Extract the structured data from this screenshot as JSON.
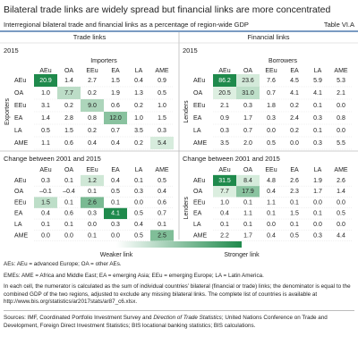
{
  "header": {
    "title": "Bilateral trade links are widely spread but financial links are more concentrated",
    "subtitle": "Interregional bilateral trade and financial links as a percentage of region-wide GDP",
    "table_id": "Table VI.A"
  },
  "panels": [
    {
      "heading": "Trade links",
      "sections": [
        {
          "label": "2015",
          "axis_label": "Importers",
          "side_label": "Exporters",
          "columns": [
            "AEu",
            "OA",
            "EEu",
            "EA",
            "LA",
            "AME"
          ],
          "rows": [
            {
              "label": "AEu",
              "cells": [
                "20.9",
                "1.4",
                "2.7",
                "1.5",
                "0.4",
                "0.9"
              ]
            },
            {
              "label": "OA",
              "cells": [
                "1.0",
                "7.7",
                "0.2",
                "1.9",
                "1.3",
                "0.5"
              ]
            },
            {
              "label": "EEu",
              "cells": [
                "3.1",
                "0.2",
                "9.0",
                "0.6",
                "0.2",
                "1.0"
              ]
            },
            {
              "label": "EA",
              "cells": [
                "1.4",
                "2.8",
                "0.8",
                "12.0",
                "1.0",
                "1.5"
              ]
            },
            {
              "label": "LA",
              "cells": [
                "0.5",
                "1.5",
                "0.2",
                "0.7",
                "3.5",
                "0.3"
              ]
            },
            {
              "label": "AME",
              "cells": [
                "1.1",
                "0.6",
                "0.4",
                "0.4",
                "0.2",
                "5.4"
              ]
            }
          ]
        },
        {
          "label": "Change between 2001 and 2015",
          "columns": [
            "AEu",
            "OA",
            "EEu",
            "EA",
            "LA",
            "AME"
          ],
          "rows": [
            {
              "label": "AEu",
              "cells": [
                "0.3",
                "0.1",
                "1.2",
                "0.4",
                "0.1",
                "0.5"
              ]
            },
            {
              "label": "OA",
              "cells": [
                "–0.1",
                "–0.4",
                "0.1",
                "0.5",
                "0.3",
                "0.4"
              ]
            },
            {
              "label": "EEu",
              "cells": [
                "1.5",
                "0.1",
                "2.6",
                "0.1",
                "0.0",
                "0.6"
              ]
            },
            {
              "label": "EA",
              "cells": [
                "0.4",
                "0.6",
                "0.3",
                "4.1",
                "0.5",
                "0.7"
              ]
            },
            {
              "label": "LA",
              "cells": [
                "0.1",
                "0.1",
                "0.0",
                "0.3",
                "0.4",
                "0.1"
              ]
            },
            {
              "label": "AME",
              "cells": [
                "0.0",
                "0.0",
                "0.1",
                "0.0",
                "0.5",
                "2.5"
              ]
            }
          ]
        }
      ]
    },
    {
      "heading": "Financial links",
      "sections": [
        {
          "label": "2015",
          "axis_label": "Borrowers",
          "side_label": "Lenders",
          "columns": [
            "AEu",
            "OA",
            "EEu",
            "EA",
            "LA",
            "AME"
          ],
          "rows": [
            {
              "label": "AEu",
              "cells": [
                "86.2",
                "23.6",
                "7.6",
                "4.5",
                "5.9",
                "5.3"
              ]
            },
            {
              "label": "OA",
              "cells": [
                "20.5",
                "31.0",
                "0.7",
                "4.1",
                "4.1",
                "2.1"
              ]
            },
            {
              "label": "EEu",
              "cells": [
                "2.1",
                "0.3",
                "1.8",
                "0.2",
                "0.1",
                "0.0"
              ]
            },
            {
              "label": "EA",
              "cells": [
                "0.9",
                "1.7",
                "0.3",
                "2.4",
                "0.3",
                "0.8"
              ]
            },
            {
              "label": "LA",
              "cells": [
                "0.3",
                "0.7",
                "0.0",
                "0.2",
                "0.1",
                "0.0"
              ]
            },
            {
              "label": "AME",
              "cells": [
                "3.5",
                "2.0",
                "0.5",
                "0.0",
                "0.3",
                "5.5"
              ]
            }
          ]
        },
        {
          "label": "Change between 2001 and 2015",
          "side_label": "Lenders",
          "columns": [
            "AEu",
            "OA",
            "EEu",
            "EA",
            "LA",
            "AME"
          ],
          "rows": [
            {
              "label": "AEu",
              "cells": [
                "31.5",
                "8.4",
                "4.8",
                "2.6",
                "1.9",
                "2.6"
              ]
            },
            {
              "label": "OA",
              "cells": [
                "7.7",
                "17.9",
                "0.4",
                "2.3",
                "1.7",
                "1.4"
              ]
            },
            {
              "label": "EEu",
              "cells": [
                "1.0",
                "0.1",
                "1.1",
                "0.1",
                "0.0",
                "0.0"
              ]
            },
            {
              "label": "EA",
              "cells": [
                "0.4",
                "1.1",
                "0.1",
                "1.5",
                "0.1",
                "0.5"
              ]
            },
            {
              "label": "LA",
              "cells": [
                "0.1",
                "0.1",
                "0.0",
                "0.1",
                "0.0",
                "0.0"
              ]
            },
            {
              "label": "AME",
              "cells": [
                "2.2",
                "1.7",
                "0.4",
                "0.5",
                "0.3",
                "4.4"
              ]
            }
          ]
        }
      ]
    }
  ],
  "legend": {
    "low": "Weaker link",
    "high": "Stronger link"
  },
  "notes": [
    "AEs: AEu = advanced Europe; OA = other AEs.",
    "EMEs: AME = Africa and Middle East; EA = emerging Asia; EEu = emerging Europe; LA = Latin America.",
    "In each cell, the numerator is calculated as the sum of individual countries’ bilateral (financial or trade) links; the denominator is equal to the combined GDP of the two regions, adjusted to exclude any missing bilateral links. The complete list of countries is available at http://www.bis.org/statistics/ar2017stats/ar87_c6.xlsx."
  ],
  "sources": [
    "Sources: IMF, Coordinated Portfolio Investment Survey and ",
    "Direction of Trade Statistics",
    "; United Nations Conference on Trade and Development, Foreign Direct Investment Statistics; BIS locational banking statistics; BIS calculations."
  ]
}
